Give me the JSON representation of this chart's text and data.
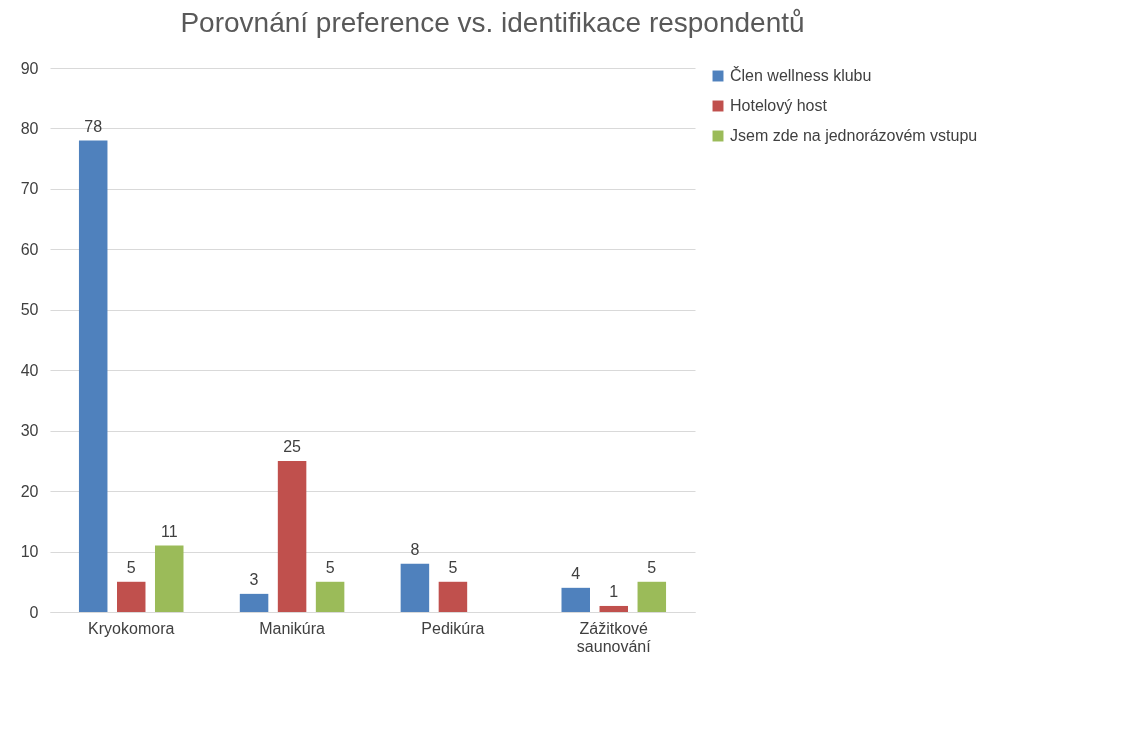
{
  "chart_data": {
    "type": "bar",
    "title": "Porovnání preference vs. identifikace respondentů",
    "categories": [
      "Kryokomora",
      "Manikúra",
      "Pedikúra",
      "Zážitkové saunování"
    ],
    "series": [
      {
        "name": "Člen wellness klubu",
        "color": "#4f81bd",
        "values": [
          78,
          3,
          8,
          4
        ]
      },
      {
        "name": "Hotelový host",
        "color": "#c0504d",
        "values": [
          5,
          25,
          5,
          1
        ]
      },
      {
        "name": "Jsem zde na jednorázovém vstupu",
        "color": "#9bbb59",
        "values": [
          11,
          5,
          null,
          5
        ]
      }
    ],
    "ylim": [
      0,
      90
    ],
    "yticks": [
      0,
      10,
      20,
      30,
      40,
      50,
      60,
      70,
      80,
      90
    ],
    "grid": "y",
    "legend": "right",
    "data_labels": true
  }
}
